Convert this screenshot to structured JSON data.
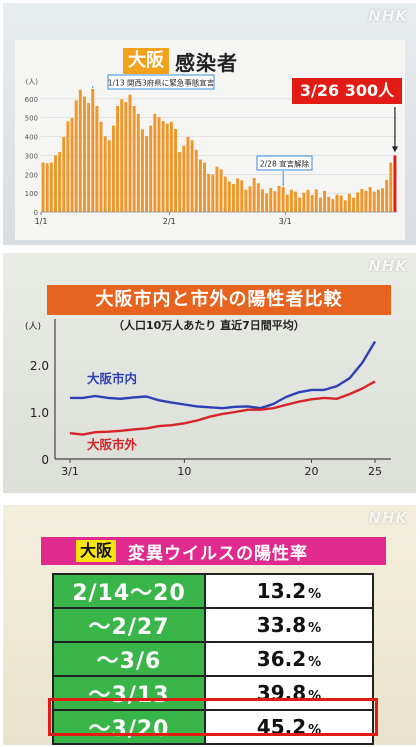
{
  "watermark": "NHK",
  "panel1": {
    "title_box": "大阪",
    "title_rest": "感染者",
    "highlight": "3/26 300人",
    "annotations": {
      "a1": "1/13 関西3府県に緊急事態宣言",
      "a2": "2/28 宣言解除"
    },
    "colors": {
      "bar": "#f0962a",
      "last_bar": "#e21b14",
      "annotation": "#3a8fd9"
    }
  },
  "panel2": {
    "title": "大阪市内と市外の陽性者比較",
    "note": "（人口10万人あたり 直近7日間平均）",
    "colors": {
      "inside": "#2f3fb5",
      "outside": "#d9232a"
    }
  },
  "panel3": {
    "title_box": "大阪",
    "title_rest": "変異ウイルスの陽性率",
    "rows": [
      {
        "period": "2/14～20",
        "rate": "13.2",
        "unit": "%"
      },
      {
        "period": "～2/27",
        "rate": "33.8",
        "unit": "%"
      },
      {
        "period": "～3/6",
        "rate": "36.2",
        "unit": "%"
      },
      {
        "period": "～3/13",
        "rate": "39.8",
        "unit": "%"
      },
      {
        "period": "～3/20",
        "rate": "45.2",
        "unit": "%"
      }
    ],
    "highlighted_row": 4,
    "colors": {
      "period_bg": "#39b54a",
      "highlight": "#e21b14"
    }
  },
  "chart_data": [
    {
      "type": "bar",
      "title": "大阪 感染者",
      "ylabel": "(人)",
      "ylim": [
        0,
        700
      ],
      "yticks": [
        0,
        100,
        200,
        300,
        400,
        500,
        600
      ],
      "xticks": [
        "1/1",
        "2/1",
        "3/1"
      ],
      "x_start": "1/1",
      "x_end": "3/26",
      "values": [
        262,
        258,
        262,
        300,
        318,
        398,
        480,
        498,
        592,
        648,
        612,
        578,
        652,
        562,
        478,
        402,
        380,
        458,
        562,
        598,
        583,
        622,
        562,
        520,
        438,
        402,
        458,
        520,
        502,
        482,
        468,
        478,
        440,
        318,
        352,
        398,
        380,
        330,
        278,
        262,
        202,
        198,
        240,
        226,
        188,
        162,
        148,
        178,
        168,
        118,
        136,
        180,
        152,
        120,
        98,
        128,
        110,
        138,
        132,
        92,
        118,
        108,
        76,
        102,
        118,
        90,
        120,
        76,
        112,
        80,
        68,
        92,
        88,
        62,
        96,
        76,
        104,
        122,
        112,
        132,
        108,
        118,
        126,
        170,
        262,
        300
      ],
      "annotations": [
        {
          "text": "1/13 関西3府県に緊急事態宣言",
          "x": "1/13"
        },
        {
          "text": "2/28 宣言解除",
          "x": "2/28"
        },
        {
          "text": "3/26 300人",
          "x": "3/26",
          "value": 300
        }
      ]
    },
    {
      "type": "line",
      "title": "大阪市内と市外の陽性者比較",
      "subtitle": "（人口10万人あたり 直近7日間平均）",
      "ylabel": "(人)",
      "ylim": [
        0,
        2.7
      ],
      "yticks": [
        "0",
        "1.0",
        "2.0"
      ],
      "xticks": [
        "3/1",
        "10",
        "20",
        "25"
      ],
      "x": [
        1,
        2,
        3,
        4,
        5,
        6,
        7,
        8,
        9,
        10,
        11,
        12,
        13,
        14,
        15,
        16,
        17,
        18,
        19,
        20,
        21,
        22,
        23,
        24,
        25
      ],
      "series": [
        {
          "name": "大阪市内",
          "values": [
            1.3,
            1.3,
            1.34,
            1.3,
            1.28,
            1.31,
            1.33,
            1.25,
            1.2,
            1.16,
            1.12,
            1.1,
            1.08,
            1.11,
            1.12,
            1.08,
            1.17,
            1.32,
            1.42,
            1.47,
            1.47,
            1.55,
            1.72,
            2.05,
            2.5
          ]
        },
        {
          "name": "大阪市外",
          "values": [
            0.55,
            0.52,
            0.57,
            0.58,
            0.6,
            0.63,
            0.65,
            0.7,
            0.72,
            0.76,
            0.82,
            0.9,
            0.96,
            1.0,
            1.05,
            1.05,
            1.08,
            1.15,
            1.22,
            1.27,
            1.3,
            1.28,
            1.38,
            1.5,
            1.65
          ]
        }
      ]
    },
    {
      "type": "table",
      "title": "大阪 変異ウイルスの陽性率",
      "columns": [
        "period",
        "rate_percent"
      ],
      "rows": [
        [
          "2/14～20",
          13.2
        ],
        [
          "～2/27",
          33.8
        ],
        [
          "～3/6",
          36.2
        ],
        [
          "～3/13",
          39.8
        ],
        [
          "～3/20",
          45.2
        ]
      ]
    }
  ]
}
